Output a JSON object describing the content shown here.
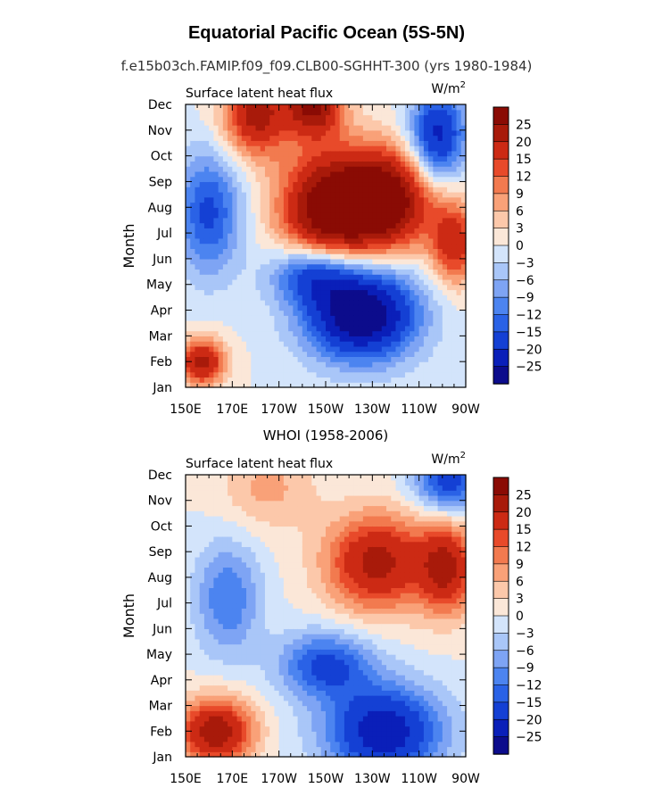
{
  "figure": {
    "title": "Equatorial Pacific Ocean (5S-5N)",
    "subtitle": "f.e15b03ch.FAMIP.f09_f09.CLB00-SGHHT-300 (yrs 1980-1984)"
  },
  "colors": {
    "levels_palette": [
      "#0c0c8c",
      "#0a1fb9",
      "#1440d4",
      "#2a62e6",
      "#4c84f0",
      "#7ea4f4",
      "#a9c6f8",
      "#d3e4fb",
      "#fbe7d8",
      "#fcc8aa",
      "#f9a178",
      "#f27a4f",
      "#e84a2a",
      "#cc2a14",
      "#a81a0a",
      "#8a0b04"
    ]
  },
  "chart_data": [
    {
      "type": "heatmap",
      "panel_title": "",
      "subtitle_left": "Surface latent heat flux",
      "units_label": "W/m",
      "units_exp": "2",
      "ylabel": "Month",
      "xlabel": "",
      "x_tick_labels": [
        "150E",
        "170E",
        "170W",
        "150W",
        "130W",
        "110W",
        "90W"
      ],
      "x_ticks_deg_east": [
        150,
        170,
        190,
        210,
        230,
        250,
        270
      ],
      "xlim_deg_east": [
        150,
        270
      ],
      "y_tick_labels": [
        "Jan",
        "Feb",
        "Mar",
        "Apr",
        "May",
        "Jun",
        "Jul",
        "Aug",
        "Sep",
        "Oct",
        "Nov",
        "Dec"
      ],
      "ylim_month": [
        1,
        12
      ],
      "colorbar_levels": [
        -25,
        -20,
        -15,
        -12,
        -9,
        -6,
        -3,
        0,
        3,
        6,
        9,
        12,
        15,
        20,
        25
      ],
      "colorbar_labels": [
        "25",
        "20",
        "15",
        "12",
        "9",
        "6",
        "3",
        "0",
        "−3",
        "−6",
        "−9",
        "−12",
        "−15",
        "−20",
        "−25"
      ],
      "anomaly_features": [
        {
          "lon": 157,
          "month": 2.0,
          "amp": 22,
          "slon": 10,
          "smon": 0.9
        },
        {
          "lon": 180,
          "month": 11.6,
          "amp": 22,
          "slon": 14,
          "smon": 1.6
        },
        {
          "lon": 210,
          "month": 7.8,
          "amp": 28,
          "slon": 20,
          "smon": 2.4
        },
        {
          "lon": 235,
          "month": 8.3,
          "amp": 32,
          "slon": 20,
          "smon": 1.9
        },
        {
          "lon": 205,
          "month": 12.0,
          "amp": 25,
          "slon": 12,
          "smon": 1.2
        },
        {
          "lon": 265,
          "month": 6.6,
          "amp": 18,
          "slon": 10,
          "smon": 1.6
        },
        {
          "lon": 160,
          "month": 7.8,
          "amp": -16,
          "slon": 14,
          "smon": 2.4
        },
        {
          "lon": 205,
          "month": 5.5,
          "amp": -20,
          "slon": 18,
          "smon": 1.2
        },
        {
          "lon": 225,
          "month": 3.9,
          "amp": -32,
          "slon": 24,
          "smon": 1.8
        },
        {
          "lon": 258,
          "month": 10.8,
          "amp": -22,
          "slon": 12,
          "smon": 1.8
        }
      ]
    },
    {
      "type": "heatmap",
      "panel_title": "WHOI (1958-2006)",
      "subtitle_left": "Surface latent heat flux",
      "units_label": "W/m",
      "units_exp": "2",
      "ylabel": "Month",
      "xlabel": "",
      "x_tick_labels": [
        "150E",
        "170E",
        "170W",
        "150W",
        "130W",
        "110W",
        "90W"
      ],
      "x_ticks_deg_east": [
        150,
        170,
        190,
        210,
        230,
        250,
        270
      ],
      "xlim_deg_east": [
        150,
        270
      ],
      "y_tick_labels": [
        "Jan",
        "Feb",
        "Mar",
        "Apr",
        "May",
        "Jun",
        "Jul",
        "Aug",
        "Sep",
        "Oct",
        "Nov",
        "Dec"
      ],
      "ylim_month": [
        1,
        12
      ],
      "colorbar_levels": [
        -25,
        -20,
        -15,
        -12,
        -9,
        -6,
        -3,
        0,
        3,
        6,
        9,
        12,
        15,
        20,
        25
      ],
      "colorbar_labels": [
        "25",
        "20",
        "15",
        "12",
        "9",
        "6",
        "3",
        "0",
        "−3",
        "−6",
        "−9",
        "−12",
        "−15",
        "−20",
        "−25"
      ],
      "anomaly_features": [
        {
          "lon": 163,
          "month": 2.0,
          "amp": 24,
          "slon": 16,
          "smon": 1.3
        },
        {
          "lon": 232,
          "month": 8.6,
          "amp": 22,
          "slon": 22,
          "smon": 1.9
        },
        {
          "lon": 262,
          "month": 8.4,
          "amp": 20,
          "slon": 12,
          "smon": 1.8
        },
        {
          "lon": 185,
          "month": 11.5,
          "amp": 7,
          "slon": 20,
          "smon": 1.6
        },
        {
          "lon": 235,
          "month": 2.0,
          "amp": -24,
          "slon": 25,
          "smon": 1.8
        },
        {
          "lon": 210,
          "month": 4.6,
          "amp": -16,
          "slon": 20,
          "smon": 1.3
        },
        {
          "lon": 168,
          "month": 7.2,
          "amp": -12,
          "slon": 14,
          "smon": 2.2
        },
        {
          "lon": 263,
          "month": 11.8,
          "amp": -18,
          "slon": 15,
          "smon": 1.3
        }
      ]
    }
  ]
}
